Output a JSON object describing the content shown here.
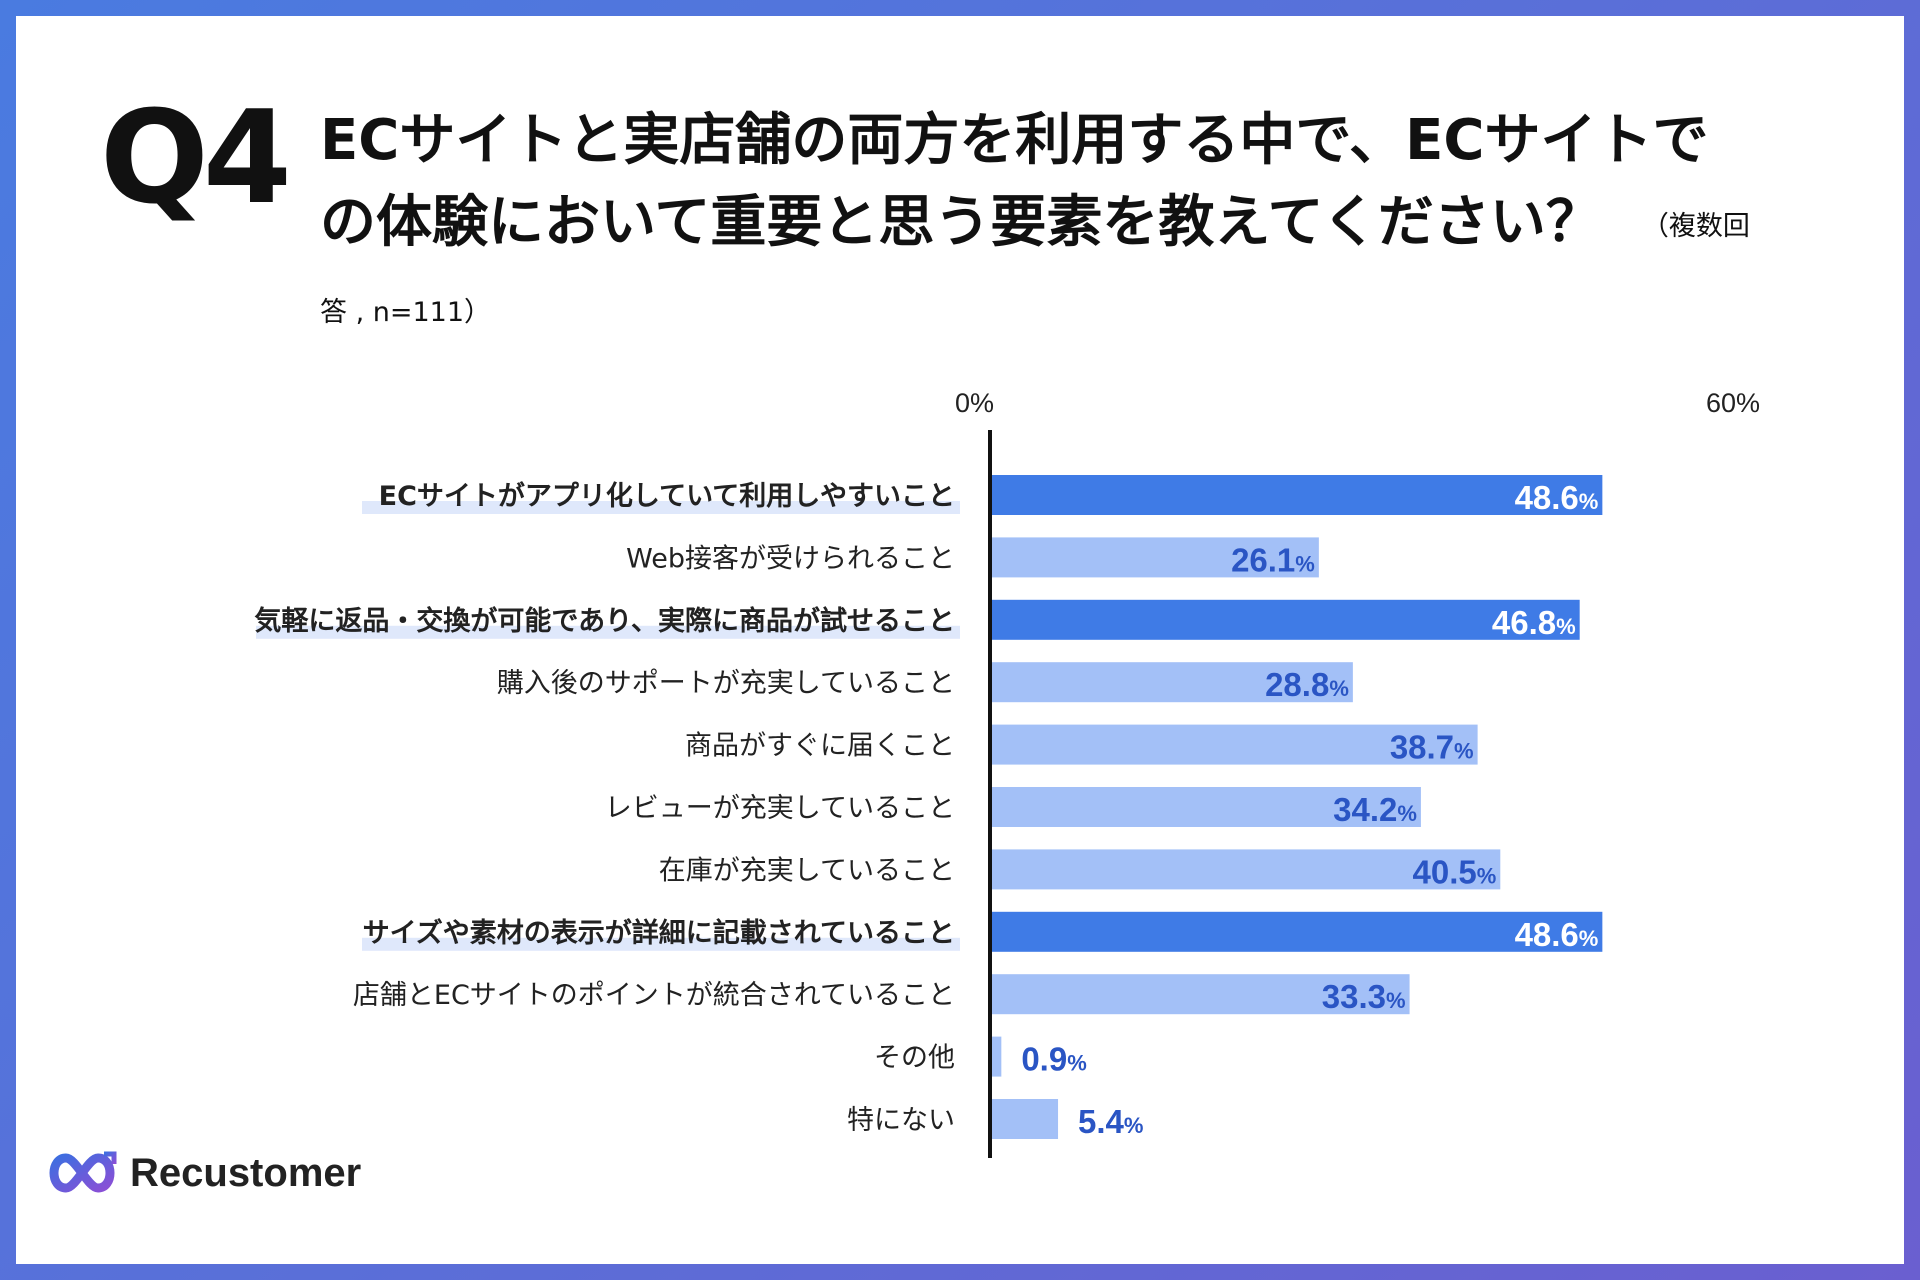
{
  "question": {
    "number": "Q4",
    "text": "ECサイトと実店舗の両方を利用する中で、ECサイトでの体験において重要と思う要素を教えてください？",
    "note": "（複数回答 , n=111）"
  },
  "brand": {
    "name": "Recustomer"
  },
  "colors": {
    "highlight_bar": "#3f7be6",
    "normal_bar": "#a3c0f7",
    "label_highlight_bg": "#dfe8fb",
    "value_on_bar": "#ffffff",
    "value_off_bar": "#2a55c4",
    "logo_gradient_start": "#3d6ee0",
    "logo_gradient_end": "#8a4fd6"
  },
  "chart_data": {
    "type": "bar",
    "orientation": "horizontal",
    "xlim": [
      0,
      60
    ],
    "tick_labels": [
      "0%",
      "60%"
    ],
    "unit": "%",
    "categories": [
      "ECサイトがアプリ化していて利用しやすいこと",
      "Web接客が受けられること",
      "気軽に返品・交換が可能であり、実際に商品が試せること",
      "購入後のサポートが充実していること",
      "商品がすぐに届くこと",
      "レビューが充実していること",
      "在庫が充実していること",
      "サイズや素材の表示が詳細に記載されていること",
      "店舗とECサイトのポイントが統合されていること",
      "その他",
      "特にない"
    ],
    "values": [
      48.6,
      26.1,
      46.8,
      28.8,
      38.7,
      34.2,
      40.5,
      48.6,
      33.3,
      0.9,
      5.4
    ],
    "value_labels": [
      "48.6",
      "26.1",
      "46.8",
      "28.8",
      "38.7",
      "34.2",
      "40.5",
      "48.6",
      "33.3",
      "0.9",
      "5.4"
    ],
    "highlighted": [
      true,
      false,
      true,
      false,
      false,
      false,
      false,
      true,
      false,
      false,
      false
    ]
  }
}
